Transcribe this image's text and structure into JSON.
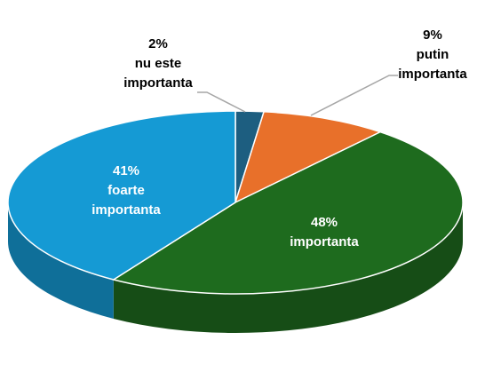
{
  "chart_data": {
    "type": "pie",
    "categories": [
      "nu este importanta",
      "putin importanta",
      "importanta",
      "foarte importanta"
    ],
    "values": [
      2,
      9,
      48,
      41
    ],
    "value_labels": [
      "2%",
      "9%",
      "48%",
      "41%"
    ],
    "colors": [
      "#1d5e80",
      "#e8702a",
      "#1e6b1e",
      "#159ad4"
    ]
  }
}
